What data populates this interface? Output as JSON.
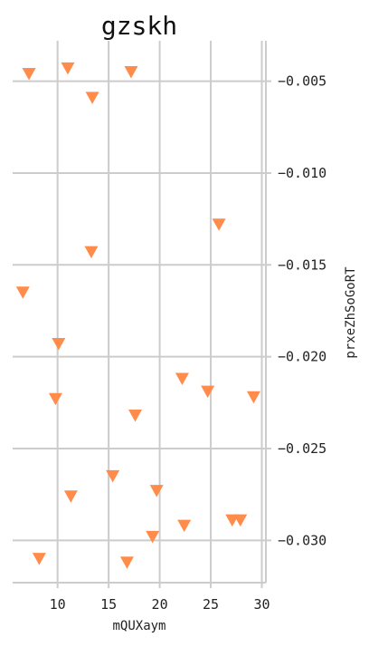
{
  "chart_data": {
    "type": "scatter",
    "title": "gzskh",
    "xlabel": "mQUXaym",
    "ylabel": "prxeZhSoGoRT",
    "xlim": [
      5.6,
      30.4
    ],
    "ylim": [
      -0.0323,
      -0.0028
    ],
    "xticks": [
      10,
      15,
      20,
      25,
      30
    ],
    "yticks": [
      -0.005,
      -0.01,
      -0.015,
      -0.02,
      -0.025,
      -0.03
    ],
    "xtick_labels": [
      "10",
      "15",
      "20",
      "25",
      "30"
    ],
    "ytick_labels": [
      "−0.005",
      "−0.010",
      "−0.015",
      "−0.020",
      "−0.025",
      "−0.030"
    ],
    "grid": true,
    "y_axis_position": "right",
    "marker": "triangle-down",
    "color": "#FF8C4A",
    "grid_color": "#CCCCCC",
    "points": [
      {
        "x": 7.2,
        "y": -0.0046
      },
      {
        "x": 11.0,
        "y": -0.0043
      },
      {
        "x": 17.2,
        "y": -0.0045
      },
      {
        "x": 13.4,
        "y": -0.0059
      },
      {
        "x": 25.8,
        "y": -0.0128
      },
      {
        "x": 13.3,
        "y": -0.0143
      },
      {
        "x": 6.6,
        "y": -0.0165
      },
      {
        "x": 10.1,
        "y": -0.0193
      },
      {
        "x": 22.2,
        "y": -0.0212
      },
      {
        "x": 24.7,
        "y": -0.0219
      },
      {
        "x": 9.8,
        "y": -0.0223
      },
      {
        "x": 29.2,
        "y": -0.0222
      },
      {
        "x": 17.6,
        "y": -0.0232
      },
      {
        "x": 15.4,
        "y": -0.0265
      },
      {
        "x": 11.3,
        "y": -0.0276
      },
      {
        "x": 19.7,
        "y": -0.0273
      },
      {
        "x": 27.1,
        "y": -0.0289
      },
      {
        "x": 27.9,
        "y": -0.0289
      },
      {
        "x": 22.4,
        "y": -0.0292
      },
      {
        "x": 19.3,
        "y": -0.0298
      },
      {
        "x": 8.2,
        "y": -0.031
      },
      {
        "x": 16.8,
        "y": -0.0312
      }
    ]
  }
}
